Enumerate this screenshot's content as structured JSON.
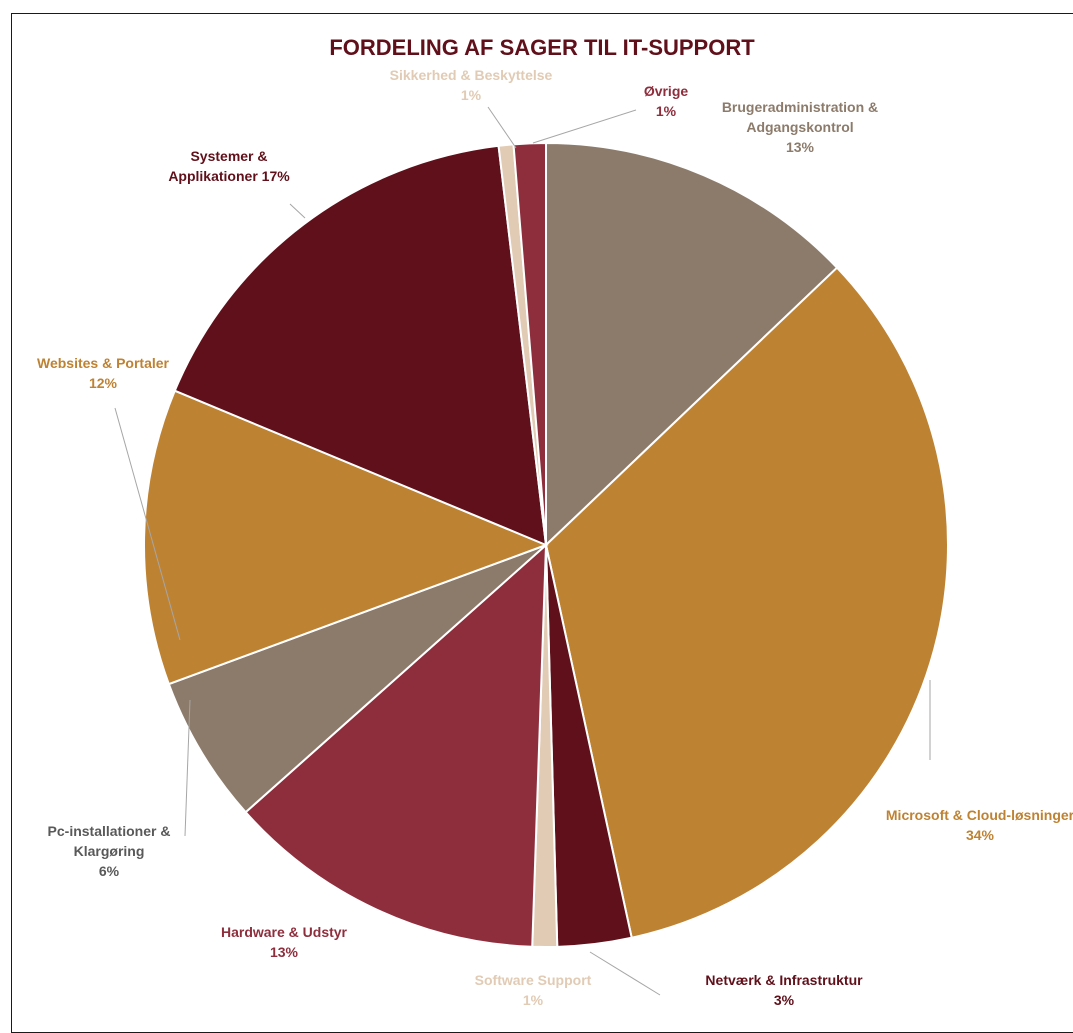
{
  "chart_data": {
    "type": "pie",
    "title": "FORDELING AF SAGER TIL IT-SUPPORT",
    "slices": [
      {
        "label_lines": [
          "Brugeradministration &",
          "Adgangskontrol"
        ],
        "pct_text": "13%",
        "value": 13,
        "color": "#8C7B6B",
        "label_color": "#8C7B6B"
      },
      {
        "label_lines": [
          "Microsoft & Cloud-løsninger"
        ],
        "pct_text": "34%",
        "value": 34,
        "color": "#BE8233",
        "label_color": "#BE8233"
      },
      {
        "label_lines": [
          "Netværk & Infrastruktur"
        ],
        "pct_text": "3%",
        "value": 3,
        "color": "#60101A",
        "label_color": "#60101A"
      },
      {
        "label_lines": [
          "Software Support"
        ],
        "pct_text": "1%",
        "value": 1,
        "color": "#E1CBB4",
        "label_color": "#E1CBB4"
      },
      {
        "label_lines": [
          "Hardware & Udstyr"
        ],
        "pct_text": "13%",
        "value": 13,
        "color": "#8E2E3D",
        "label_color": "#8E2E3D"
      },
      {
        "label_lines": [
          "Pc-installationer &",
          "Klargøring"
        ],
        "pct_text": "6%",
        "value": 6,
        "color": "#8C7B6B",
        "label_color": "#595959"
      },
      {
        "label_lines": [
          "Websites & Portaler"
        ],
        "pct_text": "12%",
        "value": 12,
        "color": "#BE8233",
        "label_color": "#BE8233"
      },
      {
        "label_lines": [
          "Systemer &",
          "Applikationer 17%"
        ],
        "pct_text": "",
        "value": 17,
        "color": "#60101A",
        "label_color": "#60101A"
      },
      {
        "label_lines": [
          "Sikkerhed & Beskyttelse"
        ],
        "pct_text": "1%",
        "value": 0.6,
        "color": "#E1CBB4",
        "label_color": "#E1CBB4"
      },
      {
        "label_lines": [
          "Øvrige"
        ],
        "pct_text": "1%",
        "value": 1.3,
        "color": "#8E2E3D",
        "label_color": "#8E2E3D"
      }
    ],
    "title_color": "#60101A",
    "leader_color": "#A6A6A6"
  }
}
